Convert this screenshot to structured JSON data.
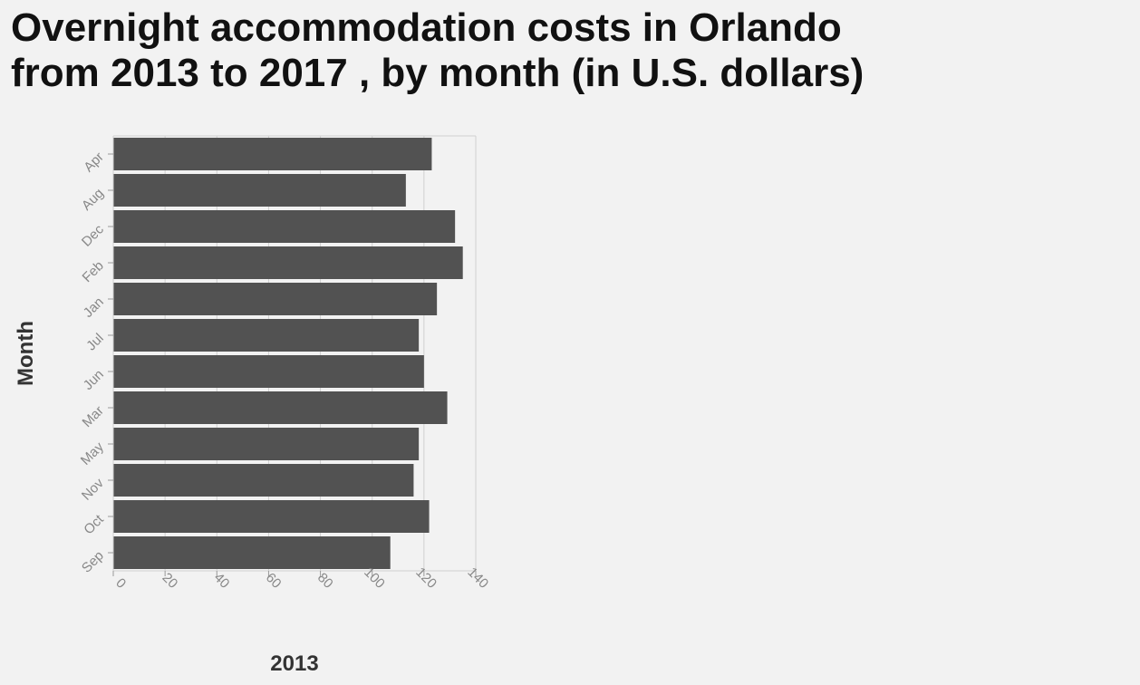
{
  "title_lines": [
    "Overnight accommodation costs in Orlando",
    "from 2013 to 2017 , by month (in U.S. dollars)"
  ],
  "chart_data": {
    "type": "bar",
    "orientation": "horizontal",
    "title": "Overnight accommodation costs in Orlando from 2013 to 2017 , by month (in U.S. dollars)",
    "xlabel": "2013",
    "ylabel": "Month",
    "categories": [
      "Apr",
      "Aug",
      "Dec",
      "Feb",
      "Jan",
      "Jul",
      "Jun",
      "Mar",
      "May",
      "Nov",
      "Oct",
      "Sep"
    ],
    "values": [
      123,
      113,
      132,
      135,
      125,
      118,
      120,
      129,
      118,
      116,
      122,
      107
    ],
    "xlim": [
      0,
      140
    ],
    "xticks": [
      0,
      20,
      40,
      60,
      80,
      100,
      120,
      140
    ],
    "grid": true,
    "bar_color": "#525252",
    "grid_color": "#d0d0d0"
  }
}
